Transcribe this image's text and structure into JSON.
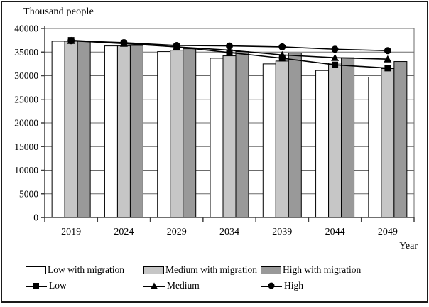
{
  "title": "Thousand people",
  "axis": {
    "x_title": "Year"
  },
  "chart_data": {
    "type": "bar+line",
    "title": "Thousand people",
    "xlabel": "Year",
    "ylabel": "",
    "categories": [
      "2019",
      "2024",
      "2029",
      "2034",
      "2039",
      "2044",
      "2049"
    ],
    "ylim": [
      0,
      40000
    ],
    "ytick_step": 5000,
    "yticks": [
      "0",
      "5000",
      "10000",
      "15000",
      "20000",
      "25000",
      "30000",
      "35000",
      "40000"
    ],
    "grid": "horizontal",
    "legend_position": "bottom",
    "bar_series": [
      {
        "name": "Low with migration",
        "color": "#ffffff",
        "values": [
          37300,
          36300,
          35100,
          33700,
          32500,
          31100,
          29700
        ]
      },
      {
        "name": "Medium with migration",
        "color": "#c6c6c6",
        "values": [
          37300,
          36300,
          35400,
          34200,
          33100,
          32700,
          31500
        ]
      },
      {
        "name": "High with migration",
        "color": "#999999",
        "values": [
          37300,
          36400,
          35700,
          35100,
          34800,
          33800,
          33000
        ]
      }
    ],
    "line_series": [
      {
        "name": "High",
        "marker": "circle",
        "color": "#000000",
        "values": [
          37400,
          37000,
          36400,
          36300,
          36100,
          35600,
          35300
        ]
      },
      {
        "name": "Medium",
        "marker": "triangle",
        "color": "#000000",
        "values": [
          37400,
          36800,
          36100,
          35400,
          34400,
          33800,
          33500
        ]
      },
      {
        "name": "Low",
        "marker": "square",
        "color": "#000000",
        "values": [
          37500,
          36900,
          36100,
          34900,
          33700,
          32300,
          31600
        ]
      }
    ]
  },
  "legend": {
    "bar_items": [
      {
        "label": "Low with migration",
        "color": "#ffffff"
      },
      {
        "label": "Medium with migration",
        "color": "#c6c6c6"
      },
      {
        "label": "High with migration",
        "color": "#999999"
      }
    ],
    "line_items": [
      {
        "label": "Low",
        "marker": "square"
      },
      {
        "label": "Medium",
        "marker": "triangle"
      },
      {
        "label": "High",
        "marker": "circle"
      }
    ]
  },
  "colors": {
    "axis": "#404040",
    "grid": "#6b6b6b",
    "bar_border": "#000000",
    "line": "#000000",
    "frame": "#1a1a1a"
  }
}
